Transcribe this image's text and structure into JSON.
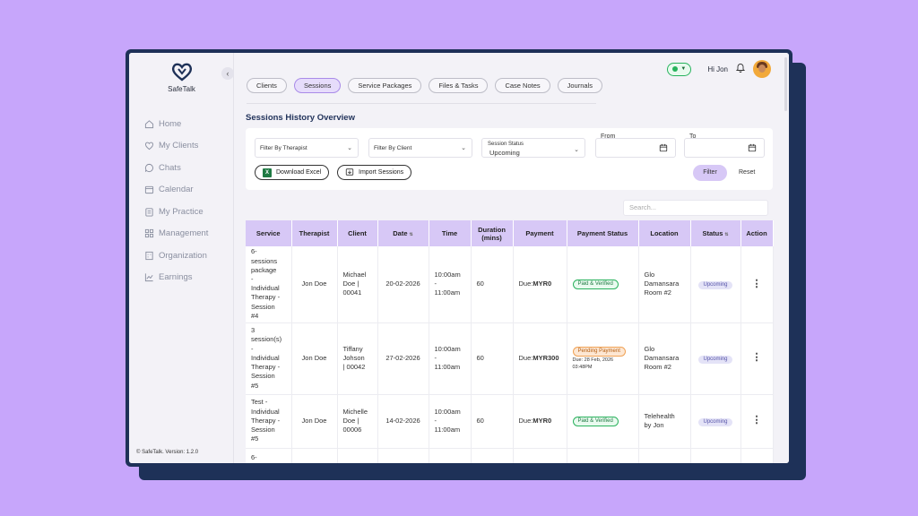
{
  "app": {
    "brand": "SafeTalk",
    "version": "© SafeTalk. Version: 1.2.0"
  },
  "sidebar": {
    "items": [
      {
        "label": "Home",
        "icon": "home-icon"
      },
      {
        "label": "My Clients",
        "icon": "heart-icon"
      },
      {
        "label": "Chats",
        "icon": "chat-icon"
      },
      {
        "label": "Calendar",
        "icon": "calendar-icon"
      },
      {
        "label": "My Practice",
        "icon": "clipboard-icon"
      },
      {
        "label": "Management",
        "icon": "grid-icon"
      },
      {
        "label": "Organization",
        "icon": "building-icon"
      },
      {
        "label": "Earnings",
        "icon": "chart-icon"
      }
    ]
  },
  "header": {
    "greeting": "Hi Jon"
  },
  "tabs": [
    "Clients",
    "Sessions",
    "Service Packages",
    "Files & Tasks",
    "Case Notes",
    "Journals"
  ],
  "page_title": "Sessions History Overview",
  "filters": {
    "therapist_placeholder": "Filter By Therapist",
    "client_placeholder": "Filter By Client",
    "status_label": "Session Status",
    "status_value": "Upcoming",
    "from_label": "From",
    "to_label": "To",
    "download_label": "Download Excel",
    "import_label": "Import Sessions",
    "filter_label": "Filter",
    "reset_label": "Reset"
  },
  "search_placeholder": "Search...",
  "table": {
    "headers": {
      "service": "Service",
      "therapist": "Therapist",
      "client": "Client",
      "date": "Date",
      "time": "Time",
      "duration_1": "Duration",
      "duration_2": "(mins)",
      "payment": "Payment",
      "payment_status": "Payment Status",
      "location": "Location",
      "status": "Status",
      "action": "Action"
    },
    "rows": [
      {
        "service": [
          "6-",
          "sessions",
          "package",
          "-",
          "Individual",
          "Therapy -",
          "Session",
          "#4"
        ],
        "therapist": "Jon Doe",
        "client": [
          "Michael",
          "Doe |",
          "00041"
        ],
        "date": "20-02-2026",
        "time": [
          "10:00am",
          "-",
          "11:00am"
        ],
        "duration": "60",
        "payment_prefix": "Due:",
        "payment_amount": "MYR0",
        "payment_status": "Paid & Verified",
        "location": [
          "Glo",
          "Damansara",
          "Room #2"
        ],
        "status": "Upcoming"
      },
      {
        "service": [
          "3",
          "session(s)",
          "-",
          "Individual",
          "Therapy -",
          "Session",
          "#5"
        ],
        "therapist": "Jon Doe",
        "client": [
          "Tiffany",
          "Johson",
          "| 00042"
        ],
        "date": "27-02-2026",
        "time": [
          "10:00am",
          "-",
          "11:00am"
        ],
        "duration": "60",
        "payment_prefix": "Due:",
        "payment_amount": "MYR300",
        "payment_status": "Pending Payment",
        "payment_due_1": "Due: 28 Feb, 2026",
        "payment_due_2": "03:48PM",
        "location": [
          "Glo",
          "Damansara",
          "Room #2"
        ],
        "status": "Upcoming"
      },
      {
        "service": [
          "Test -",
          "Individual",
          "Therapy -",
          "Session",
          "#5"
        ],
        "therapist": "Jon Doe",
        "client": [
          "Michelle",
          "Doe |",
          "00006"
        ],
        "date": "14-02-2026",
        "time": [
          "10:00am",
          "-",
          "11:00am"
        ],
        "duration": "60",
        "payment_prefix": "Due:",
        "payment_amount": "MYR0",
        "payment_status": "Paid & Verified",
        "location": [
          "Telehealth",
          "by Jon"
        ],
        "status": "Upcoming"
      },
      {
        "service": [
          "6-"
        ]
      }
    ]
  },
  "colors": {
    "background": "#c7a6fb",
    "frame": "#1e3158",
    "accent": "#d7c8f6",
    "paid": "#2bb25e",
    "pending": "#f0a255"
  }
}
